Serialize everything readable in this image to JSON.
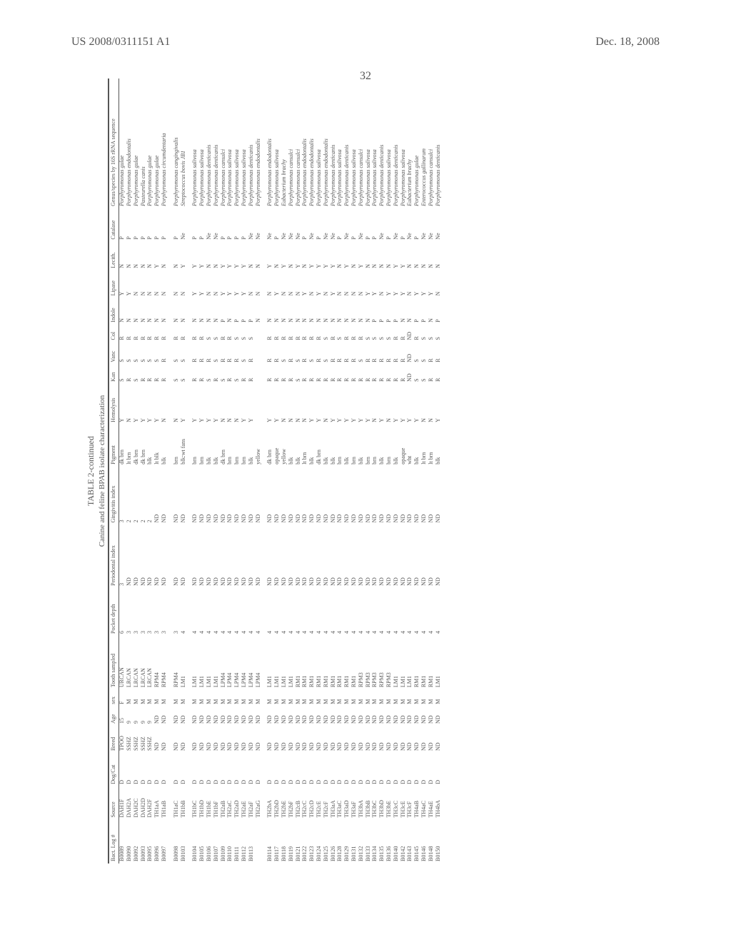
{
  "header": {
    "left": "US 2008/0311151 A1",
    "right": "Dec. 18, 2008"
  },
  "page_number": "32",
  "table": {
    "title": "TABLE 2-continued",
    "subtitle": "Canine and feline BPAB isolate characterization",
    "columns": [
      {
        "key": "log",
        "label": "Bact. Log #"
      },
      {
        "key": "source",
        "label": "Source"
      },
      {
        "key": "dogcat",
        "label": "Dog/Cat"
      },
      {
        "key": "breed",
        "label": "Breed"
      },
      {
        "key": "age",
        "label": "Age"
      },
      {
        "key": "sex",
        "label": "sex"
      },
      {
        "key": "tooth",
        "label": "Tooth sampled"
      },
      {
        "key": "pocket",
        "label": "Pocket depth"
      },
      {
        "key": "perio",
        "label": "Periodontal index"
      },
      {
        "key": "ging",
        "label": "Gingivitis index"
      },
      {
        "key": "pigment",
        "label": "Pigment"
      },
      {
        "key": "hem",
        "label": "Hemolysis"
      },
      {
        "key": "kan",
        "label": "Kan"
      },
      {
        "key": "vanc",
        "label": "Vanc"
      },
      {
        "key": "col",
        "label": "Col"
      },
      {
        "key": "indole",
        "label": "Indole"
      },
      {
        "key": "lipase",
        "label": "Lipase"
      },
      {
        "key": "lecith",
        "label": "Lecith."
      },
      {
        "key": "catalase",
        "label": "Catalase"
      },
      {
        "key": "genus",
        "label": "Genus/species by 16S rRNA sequence",
        "italic": true
      }
    ],
    "groups": [
      {
        "rows": [
          [
            "B0089",
            "DAH1F",
            "D",
            "TPOO",
            "15",
            "F",
            "URCAN",
            "6",
            "3",
            "3",
            "dk brn",
            "Y",
            "S",
            "S",
            "R",
            "N",
            "Y",
            "N",
            "P",
            "Porphyromonas gulae"
          ],
          [
            "B0090",
            "DAH2A",
            "D",
            "SSHZ",
            "9",
            "M",
            "LRCAN",
            "3",
            "ND",
            "2",
            "lt brn",
            "N",
            "R",
            "S",
            "R",
            "N",
            "Y",
            "N",
            "P",
            "Porphyromonas endodontalis"
          ],
          [
            "B0092",
            "DAH2C",
            "D",
            "SSHZ",
            "9",
            "M",
            "LRCAN",
            "3",
            "ND",
            "2",
            "dk brn",
            "Y",
            "S",
            "S",
            "R",
            "N",
            "N",
            "N",
            "P",
            "Porphyromonas gulae"
          ],
          [
            "B0093",
            "DAH2D",
            "D",
            "SSHZ",
            "9",
            "M",
            "LRCAN",
            "3",
            "ND",
            "2",
            "dk brn",
            "Y",
            "R",
            "S",
            "R",
            "N",
            "N",
            "N",
            "P",
            "Pasteurella canis"
          ],
          [
            "B0095",
            "DAH2F",
            "D",
            "SSHZ",
            "9",
            "M",
            "LRCAN",
            "3",
            "ND",
            "2",
            "blk",
            "Y",
            "R",
            "S",
            "R",
            "N",
            "N",
            "N",
            "P",
            "Porphyromonas gulae"
          ],
          [
            "B0096",
            "TH1aA",
            "D",
            "ND",
            "ND",
            "M",
            "RPM4",
            "3",
            "ND",
            "ND",
            "lt blk",
            "Y",
            "R",
            "S",
            "R",
            "N",
            "N",
            "Y",
            "P",
            "Porphyromonas gulae"
          ],
          [
            "B0097",
            "TH1aB",
            "D",
            "ND",
            "ND",
            "M",
            "RPM4",
            "3",
            "ND",
            "ND",
            "blk",
            "N",
            "R",
            "R",
            "R",
            "N",
            "N",
            "N",
            "P",
            "Porphyromonas circumdentaria"
          ]
        ]
      },
      {
        "rows": [
          [
            "B0098",
            "TH1aC",
            "D",
            "ND",
            "ND",
            "M",
            "RPM4",
            "3",
            "ND",
            "ND",
            "brn",
            "N",
            "S",
            "S",
            "R",
            "N",
            "N",
            "N",
            "P",
            "Porphyromonas cangingivalis"
          ],
          [
            "B0103",
            "TH1bB",
            "D",
            "ND",
            "ND",
            "M",
            "LM1",
            "4",
            "ND",
            "ND",
            "blk:wt fans",
            "Y",
            "S",
            "S",
            "R",
            "N",
            "N",
            "Y",
            "Ne",
            "Streptococcus bovis JB1"
          ]
        ]
      },
      {
        "rows": [
          [
            "B0104",
            "TH1bC",
            "D",
            "ND",
            "ND",
            "M",
            "LM1",
            "4",
            "ND",
            "ND",
            "brn",
            "Y",
            "R",
            "R",
            "R",
            "N",
            "Y",
            "Y",
            "P",
            "Porphyromonas salivosa"
          ],
          [
            "B0105",
            "TH1bD",
            "D",
            "ND",
            "ND",
            "M",
            "LM1",
            "4",
            "ND",
            "ND",
            "brn",
            "Y",
            "R",
            "R",
            "R",
            "N",
            "Y",
            "Y",
            "P",
            "Porphyromonas salivosa"
          ],
          [
            "B0106",
            "TH1bE",
            "D",
            "ND",
            "ND",
            "M",
            "LM1",
            "4",
            "ND",
            "ND",
            "blk",
            "Y",
            "S",
            "R",
            "S",
            "N",
            "N",
            "N",
            "Ne",
            "Porphyromonas denticanis"
          ],
          [
            "B0107",
            "TH1bF",
            "D",
            "ND",
            "ND",
            "M",
            "LM1",
            "4",
            "ND",
            "ND",
            "blk",
            "Y",
            "R",
            "S",
            "S",
            "N",
            "N",
            "N",
            "Ne",
            "Porphyromonas denticanis"
          ],
          [
            "B0109",
            "TH2aB",
            "D",
            "ND",
            "ND",
            "M",
            "LPM4",
            "4",
            "ND",
            "ND",
            "dk brn",
            "N",
            "S",
            "R",
            "R",
            "P",
            "Y",
            "Y",
            "P",
            "Porphyromonas cansulci"
          ],
          [
            "B0110",
            "TH2aC",
            "D",
            "ND",
            "ND",
            "M",
            "LPM4",
            "4",
            "ND",
            "ND",
            "brn",
            "N",
            "R",
            "R",
            "R",
            "N",
            "Y",
            "Y",
            "P",
            "Porphyromonas salivosa"
          ],
          [
            "B0111",
            "TH2aD",
            "D",
            "ND",
            "ND",
            "M",
            "LPM4",
            "4",
            "ND",
            "ND",
            "brn",
            "N",
            "S",
            "R",
            "S",
            "P",
            "Y",
            "Y",
            "P",
            "Porphyromonas salivosa"
          ],
          [
            "B0112",
            "TH2aE",
            "D",
            "ND",
            "ND",
            "M",
            "LPM4",
            "4",
            "ND",
            "ND",
            "brn",
            "Y",
            "R",
            "S",
            "S",
            "P",
            "Y",
            "Y",
            "P",
            "Porphyromonas salivosa"
          ],
          [
            "B0113",
            "TH2aF",
            "D",
            "ND",
            "ND",
            "M",
            "LPM4",
            "4",
            "ND",
            "ND",
            "blk",
            "Y",
            "R",
            "R",
            "S",
            "P",
            "N",
            "N",
            "Ne",
            "Porphyromonas denticanis"
          ],
          [
            "",
            "TH2aG",
            "D",
            "ND",
            "ND",
            "M",
            "LPM4",
            "4",
            "ND",
            "ND",
            "yellow",
            "",
            "",
            "",
            "",
            "N",
            "N",
            "N",
            "Ne",
            "Porphyromonas endodontalis"
          ]
        ]
      },
      {
        "rows": [
          [
            "B0114",
            "TH2bA",
            "D",
            "ND",
            "ND",
            "M",
            "LM1",
            "4",
            "ND",
            "ND",
            "dk brn",
            "Y",
            "R",
            "R",
            "R",
            "N",
            "N",
            "Y",
            "Ne",
            "Porphyromonas endodontalis"
          ],
          [
            "B0117",
            "TH2bD",
            "D",
            "ND",
            "ND",
            "M",
            "LM1",
            "4",
            "ND",
            "ND",
            "opaque",
            "Y",
            "R",
            "R",
            "R",
            "N",
            "Y",
            "N",
            "P",
            "Porphyromonas salivosa"
          ],
          [
            "B0118",
            "TH2bE",
            "D",
            "ND",
            "ND",
            "M",
            "LM1",
            "4",
            "ND",
            "ND",
            "yellow",
            "N",
            "R",
            "S",
            "R",
            "N",
            "N",
            "Y",
            "Ne",
            "Eubacterium brachy"
          ],
          [
            "B0119",
            "TH2bF",
            "D",
            "ND",
            "ND",
            "M",
            "LM1",
            "4",
            "ND",
            "ND",
            "blk",
            "N",
            "R",
            "R",
            "R",
            "N",
            "N",
            "N",
            "Ne",
            "Porphyromonas cansulci"
          ],
          [
            "B0121",
            "TH2cB",
            "D",
            "ND",
            "ND",
            "M",
            "RM1",
            "4",
            "ND",
            "ND",
            "blk",
            "N",
            "S",
            "S",
            "R",
            "N",
            "N",
            "Y",
            "Ne",
            "Porphyromonas cansulci"
          ],
          [
            "B0122",
            "TH2cC",
            "D",
            "ND",
            "ND",
            "M",
            "RM1",
            "4",
            "ND",
            "ND",
            "lt brn",
            "N",
            "R",
            "R",
            "R",
            "N",
            "Y",
            "N",
            "P",
            "Porphyromonas endodontalis"
          ],
          [
            "B0123",
            "TH2cD",
            "D",
            "ND",
            "ND",
            "M",
            "RM1",
            "4",
            "ND",
            "ND",
            "blk",
            "Y",
            "R",
            "S",
            "R",
            "N",
            "N",
            "Y",
            "Ne",
            "Porphyromonas endodontalis"
          ],
          [
            "B0124",
            "TH2cE",
            "D",
            "ND",
            "ND",
            "M",
            "RM1",
            "4",
            "ND",
            "ND",
            "dk brn",
            "Y",
            "R",
            "R",
            "R",
            "N",
            "Y",
            "Y",
            "P",
            "Porphyromonas salivosa"
          ],
          [
            "B0125",
            "TH2cF",
            "D",
            "ND",
            "ND",
            "M",
            "RM1",
            "4",
            "ND",
            "ND",
            "blk",
            "N",
            "R",
            "S",
            "S",
            "N",
            "N",
            "Y",
            "Ne",
            "Porphyromonas endodontalis"
          ],
          [
            "B0126",
            "TH3aA",
            "D",
            "ND",
            "ND",
            "M",
            "RM1",
            "4",
            "ND",
            "ND",
            "blk",
            "Y",
            "R",
            "R",
            "R",
            "N",
            "Y",
            "Y",
            "Ne",
            "Porphyromonas denticanis"
          ],
          [
            "B0128",
            "TH3aC",
            "D",
            "ND",
            "ND",
            "M",
            "RM1",
            "4",
            "ND",
            "ND",
            "brn",
            "Y",
            "R",
            "R",
            "S",
            "N",
            "N",
            "N",
            "P",
            "Porphyromonas salivosa"
          ],
          [
            "B0129",
            "TH3aD",
            "D",
            "ND",
            "ND",
            "M",
            "RM1",
            "4",
            "ND",
            "ND",
            "blk",
            "Y",
            "R",
            "R",
            "R",
            "N",
            "N",
            "Y",
            "Ne",
            "Porphyromonas denticanis"
          ],
          [
            "B0131",
            "TH3aF",
            "D",
            "ND",
            "ND",
            "M",
            "RM1",
            "4",
            "ND",
            "ND",
            "brn",
            "Y",
            "R",
            "R",
            "R",
            "N",
            "N",
            "N",
            "P",
            "Porphyromonas salivosa"
          ],
          [
            "B0132",
            "TH3bA",
            "D",
            "ND",
            "ND",
            "M",
            "RPM3",
            "4",
            "ND",
            "ND",
            "blk",
            "Y",
            "R",
            "S",
            "R",
            "N",
            "N",
            "Y",
            "Ne",
            "Porphyromonas cansulci"
          ],
          [
            "B0133",
            "TH3bB",
            "D",
            "ND",
            "ND",
            "M",
            "RPM3",
            "4",
            "ND",
            "ND",
            "brn",
            "Y",
            "R",
            "R",
            "S",
            "N",
            "Y",
            "N",
            "P",
            "Porphyromonas salivosa"
          ],
          [
            "B0134",
            "TH3bC",
            "D",
            "ND",
            "ND",
            "M",
            "RPM3",
            "4",
            "ND",
            "ND",
            "brn",
            "N",
            "R",
            "R",
            "S",
            "P",
            "Y",
            "N",
            "P",
            "Porphyromonas salivosa"
          ],
          [
            "B0135",
            "TH3bD",
            "D",
            "ND",
            "ND",
            "M",
            "RPM3",
            "4",
            "ND",
            "ND",
            "blk",
            "Y",
            "R",
            "R",
            "S",
            "P",
            "N",
            "N",
            "Ne",
            "Porphyromonas denticanis"
          ],
          [
            "B0136",
            "TH3bE",
            "D",
            "ND",
            "ND",
            "M",
            "RPM3",
            "4",
            "ND",
            "ND",
            "brn",
            "N",
            "R",
            "R",
            "S",
            "P",
            "Y",
            "N",
            "P",
            "Porphyromonas salivosa"
          ],
          [
            "B0140",
            "TH3cC",
            "D",
            "ND",
            "ND",
            "M",
            "LM1",
            "4",
            "ND",
            "ND",
            "blk",
            "Y",
            "R",
            "R",
            "R",
            "P",
            "Y",
            "Y",
            "Ne",
            "Porphyromonas denticanis"
          ],
          [
            "B0142",
            "TH3cE",
            "D",
            "ND",
            "ND",
            "M",
            "LM1",
            "4",
            "ND",
            "ND",
            "opaque",
            "Y",
            "R",
            "R",
            "R",
            "N",
            "Y",
            "Y",
            "P",
            "Porphyromonas salivosa"
          ],
          [
            "B0143",
            "TH3cF",
            "D",
            "ND",
            "ND",
            "M",
            "LM1",
            "4",
            "ND",
            "ND",
            "wht",
            "Y",
            "ND",
            "ND",
            "ND",
            "N",
            "N",
            "N",
            "Ne",
            "Eubacterium brachy"
          ],
          [
            "B0145",
            "TH4aB",
            "D",
            "ND",
            "ND",
            "M",
            "RM1",
            "4",
            "ND",
            "ND",
            "blk",
            "Y",
            "S",
            "S",
            "R",
            "P",
            "Y",
            "N",
            "P",
            "Porphyromonas gulae"
          ],
          [
            "B0146",
            "TH4aC",
            "D",
            "ND",
            "ND",
            "M",
            "RM1",
            "4",
            "ND",
            "ND",
            "lt brn",
            "N",
            "S",
            "S",
            "S",
            "P",
            "Y",
            "N",
            "Ne",
            "Enterococcus gallinarum"
          ],
          [
            "B0148",
            "TH4aE",
            "D",
            "ND",
            "ND",
            "M",
            "RM1",
            "4",
            "ND",
            "ND",
            "lt brn",
            "N",
            "R",
            "R",
            "S",
            "N",
            "Y",
            "N",
            "Ne",
            "Porphyromonas cansulci"
          ],
          [
            "B0150",
            "TH4bA",
            "D",
            "ND",
            "ND",
            "M",
            "LM1",
            "4",
            "ND",
            "ND",
            "blk",
            "Y",
            "R",
            "R",
            "S",
            "P",
            "N",
            "N",
            "Ne",
            "Porphyromonas denticanis"
          ]
        ]
      }
    ]
  }
}
